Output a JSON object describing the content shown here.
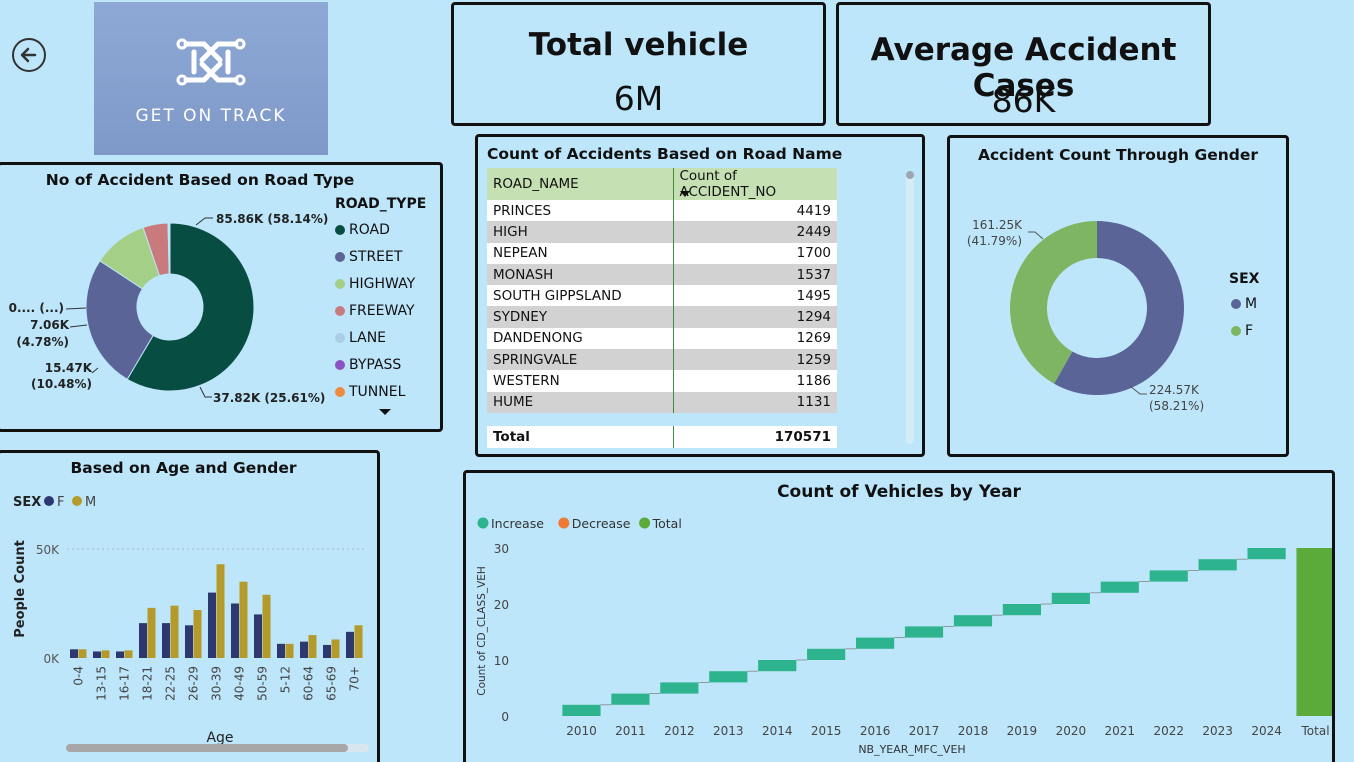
{
  "logo": {
    "text": "GET ON TRACK"
  },
  "kpis": {
    "total_vehicle": {
      "title": "Total vehicle",
      "value": "6M"
    },
    "avg_accident": {
      "title": "Average Accident Cases",
      "value": "86K"
    }
  },
  "colors": {
    "background": "#bde6fb",
    "road": "#074d42",
    "street": "#5b6496",
    "highway": "#a3cf87",
    "freeway": "#c97a7d",
    "lane": "#a9cfe6",
    "bypass": "#8a52c2",
    "tunnel": "#ef8a3e",
    "male_pie": "#5b6496",
    "female_pie": "#7db562",
    "age_f": "#2d3770",
    "age_m": "#b39a2a",
    "wf_increase": "#2db38d",
    "wf_decrease": "#ef7a33",
    "wf_total": "#5aab3a"
  },
  "road_type_panel": {
    "title": "No of Accident Based on Road Type",
    "legend_title": "ROAD_TYPE",
    "legend": [
      "ROAD",
      "STREET",
      "HIGHWAY",
      "FREEWAY",
      "LANE",
      "BYPASS",
      "TUNNEL"
    ],
    "labels": {
      "road": "85.86K (58.14%)",
      "street": "37.82K (25.61%)",
      "highway_1": "15.47K",
      "highway_2": "(10.48%)",
      "freeway_1": "7.06K",
      "freeway_2": "(4.78%)",
      "small": "0.... (...)"
    }
  },
  "road_name_panel": {
    "title": "Count of Accidents Based on Road Name",
    "columns": [
      "ROAD_NAME",
      "Count of ACCIDENT_NO"
    ],
    "rows": [
      [
        "PRINCES",
        "4419"
      ],
      [
        "HIGH",
        "2449"
      ],
      [
        "NEPEAN",
        "1700"
      ],
      [
        "MONASH",
        "1537"
      ],
      [
        "SOUTH GIPPSLAND",
        "1495"
      ],
      [
        "SYDNEY",
        "1294"
      ],
      [
        "DANDENONG",
        "1269"
      ],
      [
        "SPRINGVALE",
        "1259"
      ],
      [
        "WESTERN",
        "1186"
      ],
      [
        "HUME",
        "1131"
      ]
    ],
    "total_label": "Total",
    "total_value": "170571"
  },
  "gender_panel": {
    "title": "Accident Count Through Gender",
    "legend_title": "SEX",
    "legend": [
      "M",
      "F"
    ],
    "labels": {
      "f_1": "161.25K",
      "f_2": "(41.79%)",
      "m_1": "224.57K",
      "m_2": "(58.21%)"
    }
  },
  "age_panel": {
    "title": "Based on Age and Gender",
    "legend_title": "SEX",
    "legend": [
      "F",
      "M"
    ],
    "ylabel": "People Count",
    "xlabel": "Age",
    "yticks": [
      "50K",
      "0K"
    ]
  },
  "vehicles_panel": {
    "title": "Count of Vehicles by Year",
    "legend": [
      "Increase",
      "Decrease",
      "Total"
    ],
    "ylabel": "Count of CD_CLASS_VEH",
    "xlabel": "NB_YEAR_MFC_VEH"
  },
  "chart_data": [
    {
      "type": "pie",
      "title": "No of Accident Based on Road Type",
      "categories": [
        "ROAD",
        "STREET",
        "HIGHWAY",
        "FREEWAY",
        "LANE",
        "BYPASS",
        "TUNNEL"
      ],
      "values": [
        85860,
        37820,
        15470,
        7060,
        300,
        150,
        100
      ],
      "percents": [
        58.14,
        25.61,
        10.48,
        4.78,
        0.2,
        0.1,
        0.07
      ],
      "donut": true
    },
    {
      "type": "pie",
      "title": "Accident Count Through Gender",
      "categories": [
        "M",
        "F"
      ],
      "values": [
        224570,
        161250
      ],
      "percents": [
        58.21,
        41.79
      ],
      "donut": true
    },
    {
      "type": "bar",
      "title": "Based on Age and Gender",
      "categories": [
        "0-4",
        "13-15",
        "16-17",
        "18-21",
        "22-25",
        "26-29",
        "30-39",
        "40-49",
        "50-59",
        "5-12",
        "60-64",
        "65-69",
        "70+"
      ],
      "series": [
        {
          "name": "F",
          "values": [
            4000,
            3000,
            3000,
            16000,
            16000,
            15000,
            30000,
            25000,
            20000,
            6500,
            7500,
            6000,
            12000
          ]
        },
        {
          "name": "M",
          "values": [
            4000,
            3500,
            3500,
            23000,
            24000,
            22000,
            43000,
            35000,
            29000,
            6500,
            10500,
            8500,
            15000
          ]
        }
      ],
      "xlabel": "Age",
      "ylabel": "People Count",
      "ylim": [
        0,
        50000
      ],
      "yticks": [
        0,
        50000
      ]
    },
    {
      "type": "bar",
      "subtype": "waterfall",
      "title": "Count of Vehicles by Year",
      "categories": [
        "2010",
        "2011",
        "2012",
        "2013",
        "2014",
        "2015",
        "2016",
        "2017",
        "2018",
        "2019",
        "2020",
        "2021",
        "2022",
        "2023",
        "2024",
        "Total"
      ],
      "values": [
        2,
        2,
        2,
        2,
        2,
        2,
        2,
        2,
        2,
        2,
        2,
        2,
        2,
        2,
        2,
        30
      ],
      "xlabel": "NB_YEAR_MFC_VEH",
      "ylabel": "Count of CD_CLASS_VEH",
      "ylim": [
        0,
        30
      ],
      "yticks": [
        0,
        10,
        20,
        30
      ],
      "legend": [
        "Increase",
        "Decrease",
        "Total"
      ]
    }
  ]
}
